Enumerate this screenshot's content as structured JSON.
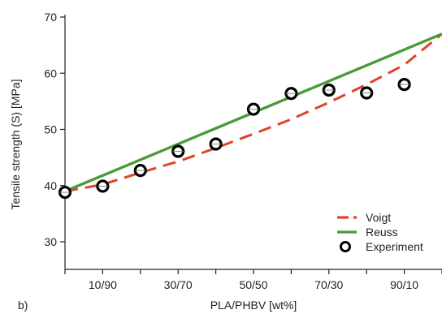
{
  "panel_label": "b)",
  "chart_data": {
    "type": "line",
    "xlabel": "PLA/PHBV [wt%]",
    "ylabel": "Tensile strength (S) [MPa]",
    "x_tick_positions": [
      10,
      30,
      50,
      70,
      90
    ],
    "x_tick_labels": [
      "10/90",
      "30/70",
      "50/50",
      "70/30",
      "90/10"
    ],
    "x_minor_ticks": [
      0,
      20,
      40,
      60,
      80,
      100
    ],
    "xlim": [
      0,
      100
    ],
    "ylim": [
      25,
      70
    ],
    "y_ticks": [
      30,
      40,
      50,
      60,
      70
    ],
    "grid": false,
    "legend_position": "bottom-right",
    "series": [
      {
        "name": "Voigt",
        "style": "dashed",
        "color": "#e0432a",
        "x": [
          0,
          10,
          20,
          30,
          40,
          50,
          60,
          70,
          80,
          90,
          100
        ],
        "y": [
          39.0,
          40.2,
          42.3,
          44.3,
          46.7,
          49.2,
          51.8,
          54.8,
          58.0,
          61.5,
          67.0
        ]
      },
      {
        "name": "Reuss",
        "style": "solid",
        "color": "#4a9a3a",
        "x": [
          0,
          100
        ],
        "y": [
          39.0,
          67.0
        ]
      },
      {
        "name": "Experiment",
        "style": "markers",
        "color": "#000000",
        "x": [
          0,
          10,
          20,
          30,
          40,
          50,
          60,
          70,
          80,
          90
        ],
        "y": [
          38.8,
          39.9,
          42.7,
          46.1,
          47.4,
          53.6,
          56.4,
          57.0,
          56.5,
          58.0
        ]
      }
    ]
  }
}
